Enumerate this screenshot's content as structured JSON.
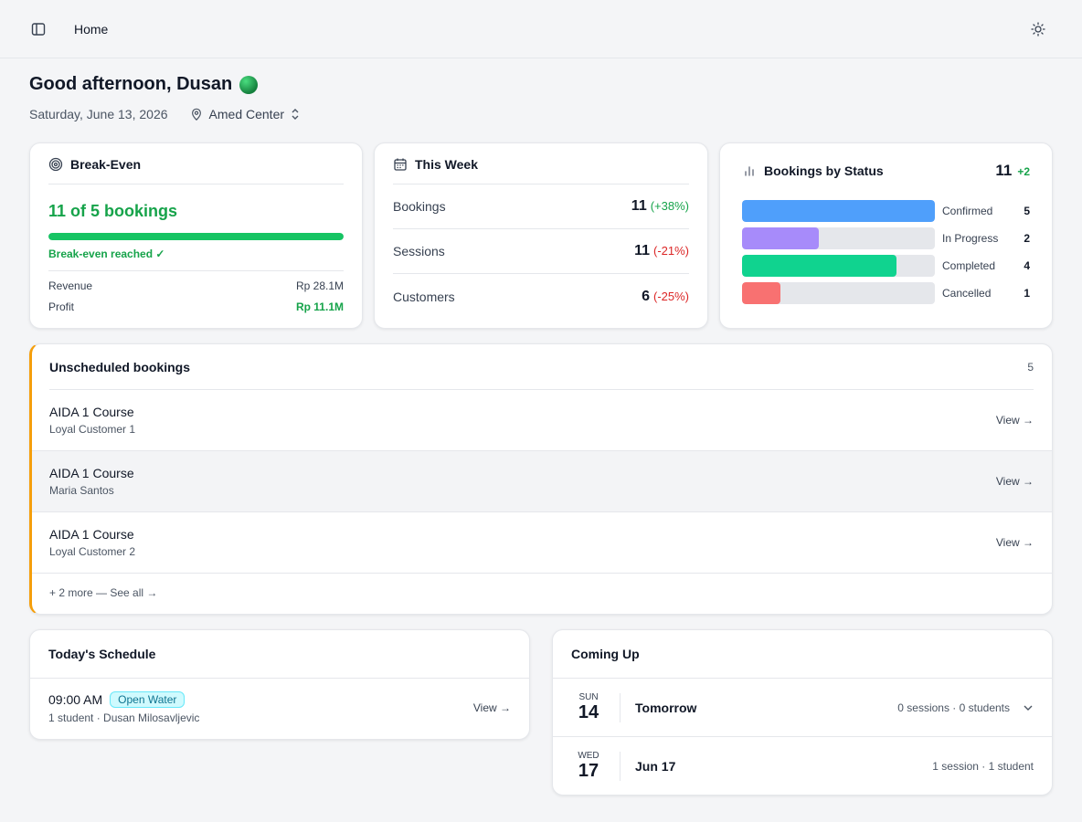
{
  "header": {
    "breadcrumb": "Home",
    "sidebar_toggle_icon": "sidebar-icon",
    "theme_icon": "sun-icon"
  },
  "greeting": {
    "text": "Good afternoon, Dusan",
    "status_color": "#22c55e"
  },
  "subline": {
    "date": "Saturday, June 13, 2026",
    "location": "Amed Center"
  },
  "break_even": {
    "title": "Break-Even",
    "summary": "11 of 5 bookings",
    "progress_fraction": 1.0,
    "status": "Break-even reached ✓",
    "rows": [
      {
        "label": "Revenue",
        "value": "Rp 28.1M"
      },
      {
        "label": "Profit",
        "value": "Rp 11.1M"
      }
    ]
  },
  "this_week": {
    "title": "This Week",
    "rows": [
      {
        "label": "Bookings",
        "value": "11",
        "change": "(+38%)",
        "trend": "up"
      },
      {
        "label": "Sessions",
        "value": "11",
        "change": "(-21%)",
        "trend": "down"
      },
      {
        "label": "Customers",
        "value": "6",
        "change": "(-25%)",
        "trend": "down"
      }
    ]
  },
  "bookings_by_status": {
    "title": "Bookings by Status",
    "total": "11",
    "delta": "+2",
    "statuses": [
      {
        "label": "Confirmed",
        "count": "5",
        "color": "#4f9ffb"
      },
      {
        "label": "In Progress",
        "count": "2",
        "color": "#a78bfa"
      },
      {
        "label": "Completed",
        "count": "4",
        "color": "#10d38f"
      },
      {
        "label": "Cancelled",
        "count": "1",
        "color": "#f87171"
      }
    ]
  },
  "chart_data": {
    "type": "bar",
    "categories": [
      "Confirmed",
      "In Progress",
      "Completed",
      "Cancelled"
    ],
    "values": [
      5,
      2,
      4,
      1
    ],
    "title": "Bookings by Status",
    "xlabel": "",
    "ylabel": "",
    "xlim": [
      0,
      5
    ]
  },
  "unscheduled": {
    "title": "Unscheduled bookings",
    "count": "5",
    "accent_color": "#f59e0b",
    "items": [
      {
        "title": "AIDA 1 Course",
        "customer": "Loyal Customer 1",
        "action": "View →"
      },
      {
        "title": "AIDA 1 Course",
        "customer": "Maria Santos",
        "action": "View →"
      },
      {
        "title": "AIDA 1 Course",
        "customer": "Loyal Customer 2",
        "action": "View →"
      }
    ],
    "more_link": "+ 2 more — See all →"
  },
  "todays_schedule": {
    "title": "Today's Schedule",
    "items": [
      {
        "time": "09:00 AM",
        "tag": "Open Water",
        "details": "1 student · Dusan Milosavljevic",
        "action": "View →"
      }
    ]
  },
  "coming_up": {
    "title": "Coming Up",
    "days": [
      {
        "dow": "SUN",
        "day": "14",
        "label": "Tomorrow",
        "info": "0 sessions · 0 students",
        "expandable": true
      },
      {
        "dow": "WED",
        "day": "17",
        "label": "Jun 17",
        "info": "1 session · 1 student",
        "expandable": false
      }
    ]
  }
}
